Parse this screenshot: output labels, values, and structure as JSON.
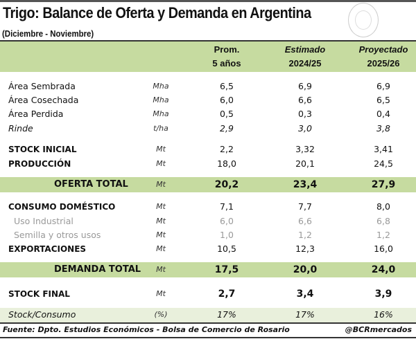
{
  "title": "Trigo: Balance de Oferta y Demanda en Argentina",
  "subtitle": "(Diciembre - Noviembre)",
  "colors": {
    "band": "#c6dba0",
    "light_band": "#e9f0dc"
  },
  "columns": [
    {
      "line1": "Prom.",
      "line2": "5 años",
      "italic": false
    },
    {
      "line1": "Estimado",
      "line2": "2024/25",
      "italic": true
    },
    {
      "line1": "Proyectado",
      "line2": "2025/26",
      "italic": true
    }
  ],
  "rows": [
    {
      "label": "Área Sembrada",
      "unit": "Mha",
      "values": [
        "6,5",
        "6,9",
        "6,9"
      ],
      "style": ""
    },
    {
      "label": "Área Cosechada",
      "unit": "Mha",
      "values": [
        "6,0",
        "6,6",
        "6,5"
      ],
      "style": ""
    },
    {
      "label": "Área Perdida",
      "unit": "Mha",
      "values": [
        "0,5",
        "0,3",
        "0,4"
      ],
      "style": ""
    },
    {
      "label": "Rinde",
      "unit": "t/ha",
      "values": [
        "2,9",
        "3,0",
        "3,8"
      ],
      "style": "ital"
    },
    {
      "label": "STOCK INICIAL",
      "unit": "Mt",
      "values": [
        "2,2",
        "3,32",
        "3,41"
      ],
      "style": "bold"
    },
    {
      "label": "PRODUCCIÓN",
      "unit": "Mt",
      "values": [
        "18,0",
        "20,1",
        "24,5"
      ],
      "style": "bold"
    },
    {
      "label": "OFERTA TOTAL",
      "unit": "Mt",
      "values": [
        "20,2",
        "23,4",
        "27,9"
      ],
      "style": "total"
    },
    {
      "label": "CONSUMO DOMÉSTICO",
      "unit": "Mt",
      "values": [
        "7,1",
        "7,7",
        "8,0"
      ],
      "style": "bold"
    },
    {
      "label": "Uso Industrial",
      "unit": "Mt",
      "values": [
        "6,0",
        "6,6",
        "6,8"
      ],
      "style": "sub"
    },
    {
      "label": "Semilla y otros usos",
      "unit": "Mt",
      "values": [
        "1,0",
        "1,2",
        "1,2"
      ],
      "style": "sub"
    },
    {
      "label": "EXPORTACIONES",
      "unit": "Mt",
      "values": [
        "10,5",
        "12,3",
        "16,0"
      ],
      "style": "bold"
    },
    {
      "label": "DEMANDA TOTAL",
      "unit": "Mt",
      "values": [
        "17,5",
        "20,0",
        "24,0"
      ],
      "style": "total"
    },
    {
      "label": "STOCK FINAL",
      "unit": "Mt",
      "values": [
        "2,7",
        "3,4",
        "3,9"
      ],
      "style": "bold big"
    },
    {
      "label": "Stock/Consumo",
      "unit": "(%)",
      "values": [
        "17%",
        "17%",
        "16%"
      ],
      "style": "ital"
    }
  ],
  "footer": {
    "source": "Fuente: Dpto. Estudios Económicos - Bolsa de Comercio de Rosario",
    "handle": "@BCRmercados"
  }
}
